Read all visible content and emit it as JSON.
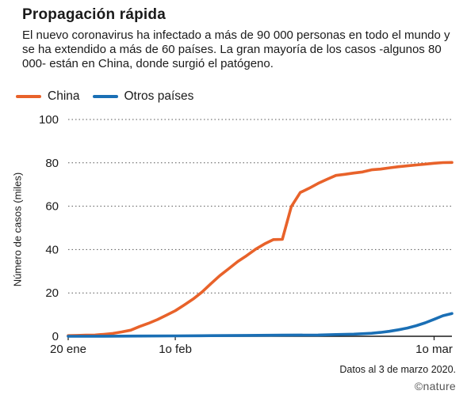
{
  "header": {
    "title": "Propagación rápida",
    "subtitle": "El nuevo coronavirus ha infectado a más de 90 000 personas en todo el mundo y se ha extendido a más de 60 países. La gran mayoría de los casos -algunos 80 000- están en China, donde surgió el patógeno."
  },
  "footer": {
    "source": "Datos al 3 de marzo 2020.",
    "credit": "©nature"
  },
  "colors": {
    "china": "#e8622a",
    "others": "#1a6fb5",
    "grid": "#555555",
    "text": "#1a1a1a"
  },
  "chart_data": {
    "type": "line",
    "title": "Propagación rápida",
    "ylabel": "Número de casos (miles)",
    "xlabel": "",
    "ylim": [
      0,
      100
    ],
    "yticks": [
      0,
      20,
      40,
      60,
      80,
      100
    ],
    "x_range_days": [
      0,
      43
    ],
    "xticks": [
      {
        "day": 0,
        "label": "20 ene"
      },
      {
        "day": 12,
        "label": "1o feb"
      },
      {
        "day": 41,
        "label": "1o mar"
      }
    ],
    "legend": "top-left",
    "grid": true,
    "series": [
      {
        "name": "China",
        "key": "china",
        "points": [
          [
            0,
            0.3
          ],
          [
            1,
            0.4
          ],
          [
            2,
            0.5
          ],
          [
            3,
            0.6
          ],
          [
            4,
            0.9
          ],
          [
            5,
            1.3
          ],
          [
            6,
            2.0
          ],
          [
            7,
            2.8
          ],
          [
            8,
            4.5
          ],
          [
            9,
            6.0
          ],
          [
            10,
            7.7
          ],
          [
            11,
            9.7
          ],
          [
            12,
            11.8
          ],
          [
            13,
            14.4
          ],
          [
            14,
            17.2
          ],
          [
            15,
            20.4
          ],
          [
            16,
            24.3
          ],
          [
            17,
            28.0
          ],
          [
            18,
            31.2
          ],
          [
            19,
            34.5
          ],
          [
            20,
            37.2
          ],
          [
            21,
            40.2
          ],
          [
            22,
            42.6
          ],
          [
            23,
            44.6
          ],
          [
            24,
            44.7
          ],
          [
            25,
            59.8
          ],
          [
            26,
            66.3
          ],
          [
            27,
            68.3
          ],
          [
            28,
            70.5
          ],
          [
            29,
            72.4
          ],
          [
            30,
            74.2
          ],
          [
            31,
            74.7
          ],
          [
            32,
            75.3
          ],
          [
            33,
            75.8
          ],
          [
            34,
            76.8
          ],
          [
            35,
            77.1
          ],
          [
            36,
            77.7
          ],
          [
            37,
            78.2
          ],
          [
            38,
            78.6
          ],
          [
            39,
            79.0
          ],
          [
            40,
            79.4
          ],
          [
            41,
            79.8
          ],
          [
            42,
            80.1
          ],
          [
            43,
            80.2
          ]
        ]
      },
      {
        "name": "Otros países",
        "key": "others",
        "points": [
          [
            0,
            0.0
          ],
          [
            4,
            0.05
          ],
          [
            8,
            0.1
          ],
          [
            12,
            0.2
          ],
          [
            16,
            0.3
          ],
          [
            20,
            0.4
          ],
          [
            24,
            0.5
          ],
          [
            28,
            0.6
          ],
          [
            30,
            0.8
          ],
          [
            32,
            1.0
          ],
          [
            34,
            1.4
          ],
          [
            35,
            1.8
          ],
          [
            36,
            2.3
          ],
          [
            37,
            3.0
          ],
          [
            38,
            3.8
          ],
          [
            39,
            4.9
          ],
          [
            40,
            6.2
          ],
          [
            41,
            7.8
          ],
          [
            42,
            9.5
          ],
          [
            43,
            10.5
          ]
        ]
      }
    ]
  }
}
